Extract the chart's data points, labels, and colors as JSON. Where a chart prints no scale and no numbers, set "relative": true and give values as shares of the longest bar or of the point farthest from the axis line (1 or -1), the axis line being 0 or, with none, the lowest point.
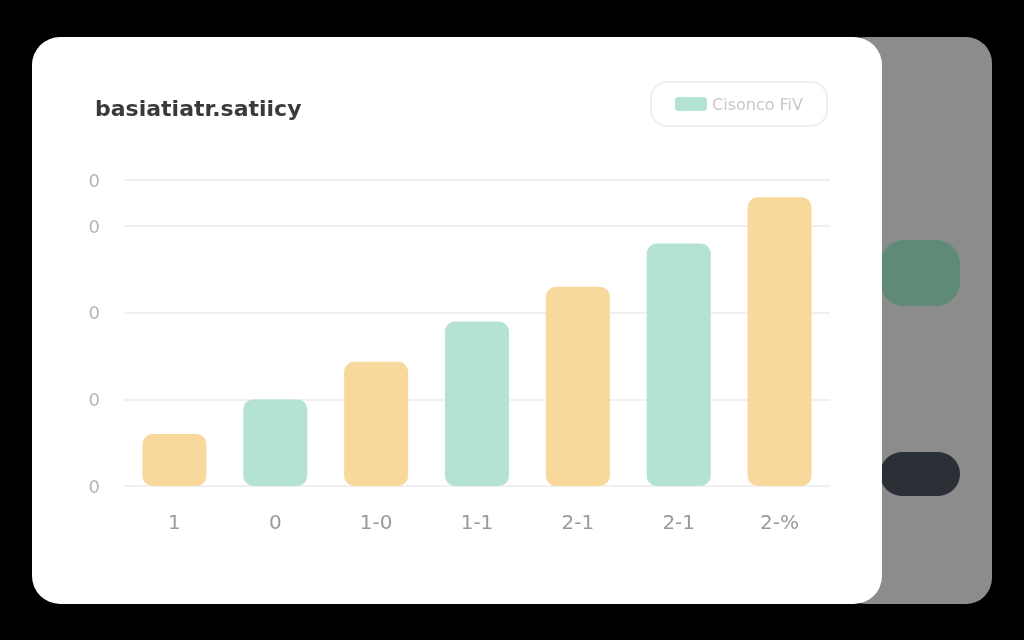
{
  "chart_data": {
    "type": "bar",
    "title": "basiatiatr.satiicy",
    "relative": true,
    "categories": [
      "1",
      "0",
      "1-0",
      "1-1",
      "2-1",
      "2-1",
      "2-%"
    ],
    "series": [
      {
        "name": "Cisonco FiV",
        "color": "#b5e3d3",
        "values": [
          null,
          0.3,
          null,
          0.57,
          null,
          0.84,
          null
        ]
      },
      {
        "color": "#f9d89c",
        "values": [
          0.18,
          null,
          0.43,
          null,
          0.69,
          null,
          1
        ]
      }
    ],
    "annotations": [
      "0",
      "0",
      "0",
      "0",
      "0"
    ],
    "grid": "y",
    "legend": "top right"
  }
}
